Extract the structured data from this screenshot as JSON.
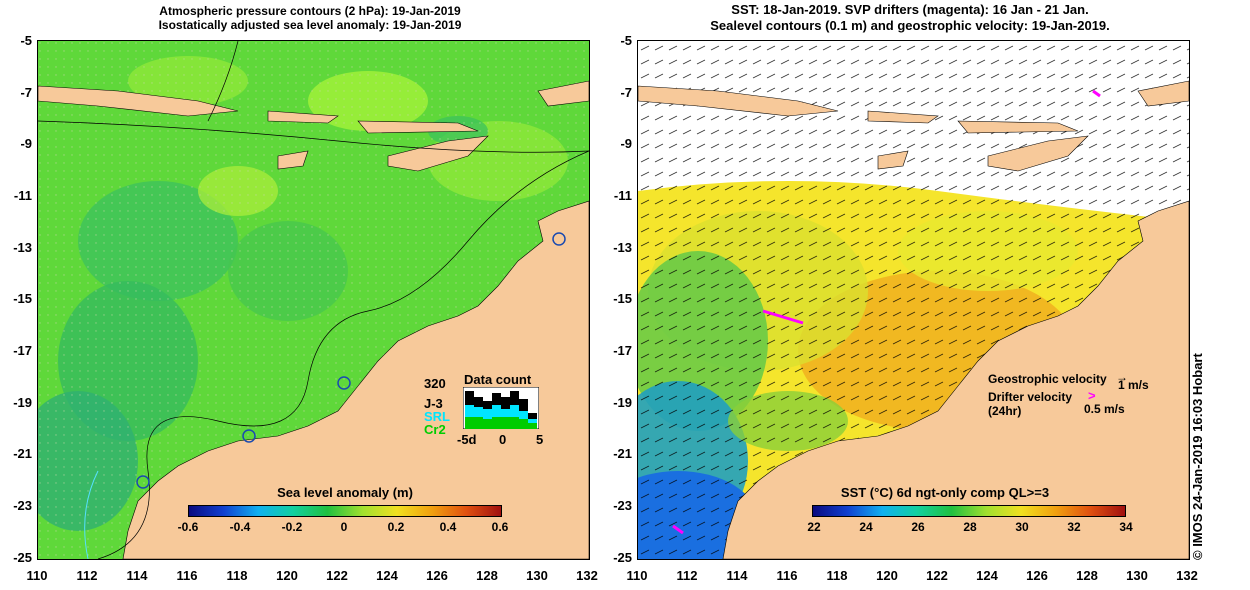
{
  "left_panel": {
    "title_line1": "Atmospheric pressure contours (2 hPa): 19-Jan-2019",
    "title_line2": "Isostatically adjusted sea level anomaly: 19-Jan-2019",
    "colorbar_title": "Sea level anomaly (m)",
    "colorbar_ticks": [
      "-0.6",
      "-0.4",
      "-0.2",
      "0",
      "0.2",
      "0.4",
      "0.6"
    ],
    "data_count": {
      "title": "Data count",
      "max_label": "320",
      "sat1": "J-3",
      "sat2": "SRL",
      "sat3": "Cr2",
      "x_ticks": [
        "-5d",
        "0",
        "5"
      ],
      "colors": {
        "sat1": "#000000",
        "sat2": "#00e5ff",
        "sat3": "#00cc00"
      }
    }
  },
  "right_panel": {
    "title_line1": "SST: 18-Jan-2019. SVP drifters (magenta): 16 Jan - 21 Jan.",
    "title_line2": "Sealevel contours (0.1 m) and geostrophic velocity: 19-Jan-2019.",
    "colorbar_title": "SST (°C) 6d ngt-only comp QL>=3",
    "colorbar_ticks": [
      "22",
      "24",
      "26",
      "28",
      "30",
      "32",
      "34"
    ],
    "legend": {
      "geostrophic_label": "Geostrophic velocity",
      "geostrophic_scale": "1 m/s",
      "drifter_label_1": "Drifter velocity",
      "drifter_label_2": "(24hr)",
      "drifter_scale": "0.5 m/s"
    },
    "credit": "© IMOS 24-Jan-2019 16:03 Hobart"
  },
  "axes": {
    "y_ticks": [
      "-5",
      "-7",
      "-9",
      "-11",
      "-13",
      "-15",
      "-17",
      "-19",
      "-21",
      "-23",
      "-25"
    ],
    "x_ticks": [
      "110",
      "112",
      "114",
      "116",
      "118",
      "120",
      "122",
      "124",
      "126",
      "128",
      "130",
      "132"
    ]
  },
  "colors": {
    "land": "#f7c99a",
    "ocean_green": "#5fd83a",
    "ocean_dark": "#2fb54a",
    "ocean_light": "#9cf03a",
    "sst_yellow": "#f5e52c",
    "sst_orange": "#f0b020",
    "sst_blue": "#1a6fe0"
  }
}
